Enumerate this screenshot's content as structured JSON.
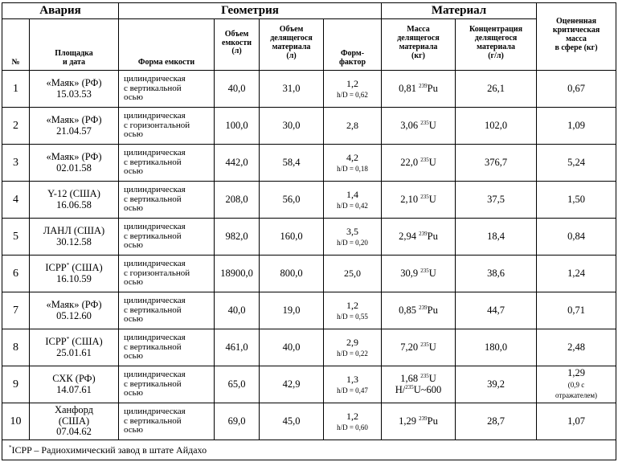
{
  "headers": {
    "group_accident": "Авария",
    "group_geometry": "Геометрия",
    "group_material": "Материал",
    "estimated_mass_line1": "Оцененная",
    "estimated_mass_line2": "критическая",
    "estimated_mass_line3": "масса",
    "estimated_mass_line4": "в сфере (кг)",
    "col_no": "№",
    "col_site_line1": "Площадка",
    "col_site_line2": "и дата",
    "col_shape": "Форма емкости",
    "col_volume_line1": "Объем",
    "col_volume_line2": "емкости",
    "col_volume_line3": "(л)",
    "col_fissile_volume_line1": "Объем",
    "col_fissile_volume_line2": "делящегося",
    "col_fissile_volume_line3": "материала",
    "col_fissile_volume_line4": "(л)",
    "col_formfactor_line1": "Форм-",
    "col_formfactor_line2": "фактор",
    "col_mass_line1": "Масса",
    "col_mass_line2": "делящегося",
    "col_mass_line3": "материала",
    "col_mass_line4": "(кг)",
    "col_conc_line1": "Концентрация",
    "col_conc_line2": "делящегося",
    "col_conc_line3": "материала",
    "col_conc_line4": "(г/л)"
  },
  "rows": [
    {
      "no": "1",
      "site": "«Маяк» (РФ)",
      "site_sup": "",
      "site_suffix": "",
      "date": "15.03.53",
      "shape": [
        "цилиндрическая",
        "с вертикальной",
        "осью"
      ],
      "volume": "40,0",
      "fissile_volume": "31,0",
      "ff": "1,2",
      "hd": "h/D = 0,62",
      "mass": "0,81",
      "isotope_a": "239",
      "element": "Pu",
      "mass_extra": "",
      "conc": "26,1",
      "crit": "0,67",
      "crit_note": ""
    },
    {
      "no": "2",
      "site": "«Маяк» (РФ)",
      "site_sup": "",
      "site_suffix": "",
      "date": "21.04.57",
      "shape": [
        "цилиндрическая",
        "с горизонтальной",
        "осью"
      ],
      "volume": "100,0",
      "fissile_volume": "30,0",
      "ff": "2,8",
      "hd": "",
      "mass": "3,06",
      "isotope_a": "235",
      "element": "U",
      "mass_extra": "",
      "conc": "102,0",
      "crit": "1,09",
      "crit_note": ""
    },
    {
      "no": "3",
      "site": "«Маяк» (РФ)",
      "site_sup": "",
      "site_suffix": "",
      "date": "02.01.58",
      "shape": [
        "цилиндрическая",
        "с вертикальной",
        "осью"
      ],
      "volume": "442,0",
      "fissile_volume": "58,4",
      "ff": "4,2",
      "hd": "h/D = 0,18",
      "mass": "22,0",
      "isotope_a": "235",
      "element": "U",
      "mass_extra": "",
      "conc": "376,7",
      "crit": "5,24",
      "crit_note": ""
    },
    {
      "no": "4",
      "site": "Y-12 (США)",
      "site_sup": "",
      "site_suffix": "",
      "date": "16.06.58",
      "shape": [
        "цилиндрическая",
        "с вертикальной",
        "осью"
      ],
      "volume": "208,0",
      "fissile_volume": "56,0",
      "ff": "1,4",
      "hd": "h/D = 0,42",
      "mass": "2,10",
      "isotope_a": "235",
      "element": "U",
      "mass_extra": "",
      "conc": "37,5",
      "crit": "1,50",
      "crit_note": ""
    },
    {
      "no": "5",
      "site": "ЛАНЛ (США)",
      "site_sup": "",
      "site_suffix": "",
      "date": "30.12.58",
      "shape": [
        "цилиндрическая",
        "с вертикальной",
        "осью"
      ],
      "volume": "982,0",
      "fissile_volume": "160,0",
      "ff": "3,5",
      "hd": "h/D = 0,20",
      "mass": "2,94",
      "isotope_a": "239",
      "element": "Pu",
      "mass_extra": "",
      "conc": "18,4",
      "crit": "0,84",
      "crit_note": ""
    },
    {
      "no": "6",
      "site": "ICPP",
      "site_sup": "*",
      "site_suffix": " (США)",
      "date": "16.10.59",
      "shape": [
        "цилиндрическая",
        "с горизонтальной",
        "осью"
      ],
      "volume": "18900,0",
      "fissile_volume": "800,0",
      "ff": "25,0",
      "hd": "",
      "mass": "30,9",
      "isotope_a": "235",
      "element": "U",
      "mass_extra": "",
      "conc": "38,6",
      "crit": "1,24",
      "crit_note": ""
    },
    {
      "no": "7",
      "site": "«Маяк» (РФ)",
      "site_sup": "",
      "site_suffix": "",
      "date": "05.12.60",
      "shape": [
        "цилиндрическая",
        "с вертикальной",
        "осью"
      ],
      "volume": "40,0",
      "fissile_volume": "19,0",
      "ff": "1,2",
      "hd": "h/D = 0,55",
      "mass": "0,85",
      "isotope_a": "239",
      "element": "Pu",
      "mass_extra": "",
      "conc": "44,7",
      "crit": "0,71",
      "crit_note": ""
    },
    {
      "no": "8",
      "site": "ICPP",
      "site_sup": "*",
      "site_suffix": " (США)",
      "date": "25.01.61",
      "shape": [
        "цилиндрическая",
        "с вертикальной",
        "осью"
      ],
      "volume": "461,0",
      "fissile_volume": "40,0",
      "ff": "2,9",
      "hd": "h/D = 0,22",
      "mass": "7,20",
      "isotope_a": "235",
      "element": "U",
      "mass_extra": "",
      "conc": "180,0",
      "crit": "2,48",
      "crit_note": ""
    },
    {
      "no": "9",
      "site": "СХК (РФ)",
      "site_sup": "",
      "site_suffix": "",
      "date": "14.07.61",
      "shape": [
        "цилиндрическая",
        "с вертикальной",
        "осью"
      ],
      "volume": "65,0",
      "fissile_volume": "42,9",
      "ff": "1,3",
      "hd": "h/D = 0,47",
      "mass": "1,68",
      "isotope_a": "235",
      "element": "U",
      "mass_extra_pre": "H/",
      "mass_extra_sup": "235",
      "mass_extra_post": "U~600",
      "conc": "39,2",
      "crit": "1,29",
      "crit_note_line1": "(0,9 с",
      "crit_note_line2": "отражателем)"
    },
    {
      "no": "10",
      "site": "Ханфорд",
      "site_sup": "",
      "site_suffix": "",
      "site_line2": "(США)",
      "date": "07.04.62",
      "shape": [
        "цилиндрическая",
        "с вертикальной",
        "осью"
      ],
      "volume": "69,0",
      "fissile_volume": "45,0",
      "ff": "1,2",
      "hd": "h/D = 0,60",
      "mass": "1,29",
      "isotope_a": "239",
      "element": "Pu",
      "mass_extra": "",
      "conc": "28,7",
      "crit": "1,07",
      "crit_note": ""
    }
  ],
  "footnote": {
    "mark": "*",
    "text": "ICPP – Радиохимический завод в штате Айдахо"
  }
}
